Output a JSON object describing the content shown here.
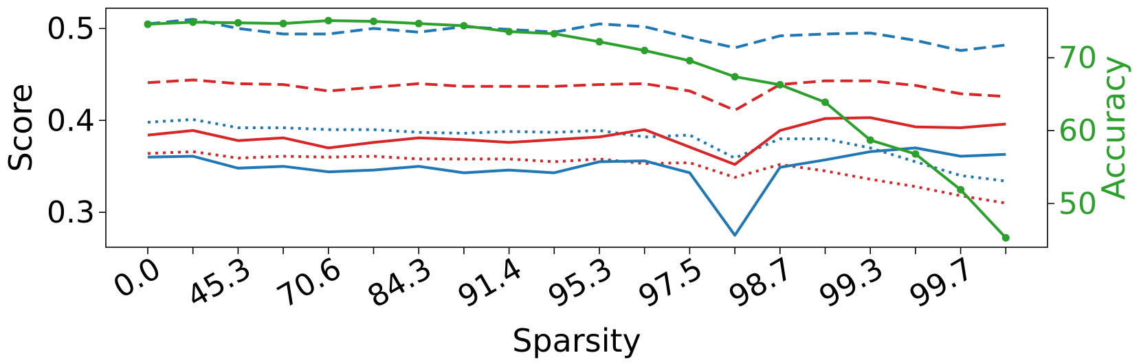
{
  "chart_data": {
    "type": "line",
    "xlabel": "Sparsity",
    "ylabel_left": "Score",
    "ylabel_right": "Accuracy",
    "x_index": [
      0,
      1,
      2,
      3,
      4,
      5,
      6,
      7,
      8,
      9,
      10,
      11,
      12,
      13,
      14,
      15,
      16,
      17,
      18,
      19
    ],
    "x_tick_positions": [
      0,
      2,
      4,
      6,
      8,
      10,
      12,
      14,
      16,
      18
    ],
    "x_tick_labels": [
      "0.0",
      "45.3",
      "70.6",
      "84.3",
      "91.4",
      "95.3",
      "97.5",
      "98.7",
      "99.3",
      "99.7"
    ],
    "left_axis": {
      "ylim": [
        0.262,
        0.522
      ],
      "ticks": [
        0.3,
        0.4,
        0.5
      ],
      "tick_labels": [
        "0.3",
        "0.4",
        "0.5"
      ]
    },
    "right_axis": {
      "ylim": [
        44,
        76.8
      ],
      "ticks": [
        50,
        60,
        70
      ],
      "tick_labels": [
        "50",
        "60",
        "70"
      ],
      "color": "#2ca02c"
    },
    "series": [
      {
        "name": "blue-dashed",
        "axis": "left",
        "color": "#1f77b4",
        "style": "dashed",
        "values": [
          0.505,
          0.51,
          0.5,
          0.494,
          0.494,
          0.5,
          0.496,
          0.502,
          0.499,
          0.496,
          0.505,
          0.502,
          0.49,
          0.479,
          0.492,
          0.494,
          0.495,
          0.487,
          0.476,
          0.482
        ]
      },
      {
        "name": "red-dashed",
        "axis": "left",
        "color": "#d62728",
        "style": "dashed",
        "values": [
          0.441,
          0.444,
          0.44,
          0.439,
          0.432,
          0.436,
          0.44,
          0.437,
          0.437,
          0.437,
          0.439,
          0.44,
          0.432,
          0.411,
          0.439,
          0.443,
          0.443,
          0.438,
          0.429,
          0.426
        ]
      },
      {
        "name": "blue-dotted",
        "axis": "left",
        "color": "#1f77b4",
        "style": "dotted",
        "values": [
          0.398,
          0.401,
          0.392,
          0.392,
          0.39,
          0.39,
          0.387,
          0.386,
          0.388,
          0.387,
          0.389,
          0.382,
          0.384,
          0.359,
          0.38,
          0.38,
          0.37,
          0.355,
          0.34,
          0.334
        ]
      },
      {
        "name": "red-solid",
        "axis": "left",
        "color": "#d62728",
        "style": "solid",
        "values": [
          0.384,
          0.389,
          0.378,
          0.381,
          0.37,
          0.376,
          0.381,
          0.379,
          0.376,
          0.379,
          0.382,
          0.39,
          0.371,
          0.352,
          0.389,
          0.402,
          0.403,
          0.393,
          0.392,
          0.396
        ]
      },
      {
        "name": "red-dotted",
        "axis": "left",
        "color": "#d62728",
        "style": "dotted",
        "values": [
          0.364,
          0.366,
          0.359,
          0.361,
          0.36,
          0.361,
          0.358,
          0.358,
          0.358,
          0.355,
          0.358,
          0.353,
          0.354,
          0.338,
          0.352,
          0.345,
          0.336,
          0.328,
          0.318,
          0.31
        ]
      },
      {
        "name": "blue-solid",
        "axis": "left",
        "color": "#1f77b4",
        "style": "solid",
        "values": [
          0.36,
          0.361,
          0.348,
          0.35,
          0.344,
          0.346,
          0.35,
          0.343,
          0.346,
          0.343,
          0.355,
          0.356,
          0.343,
          0.275,
          0.349,
          0.357,
          0.366,
          0.37,
          0.361,
          0.363
        ]
      },
      {
        "name": "accuracy",
        "axis": "right",
        "color": "#2ca02c",
        "style": "solid",
        "markers": true,
        "values": [
          74.6,
          74.9,
          74.8,
          74.7,
          75.1,
          75.0,
          74.7,
          74.4,
          73.6,
          73.3,
          72.2,
          71.0,
          69.6,
          67.4,
          66.3,
          63.9,
          58.7,
          56.8,
          51.9,
          45.3
        ]
      }
    ]
  }
}
